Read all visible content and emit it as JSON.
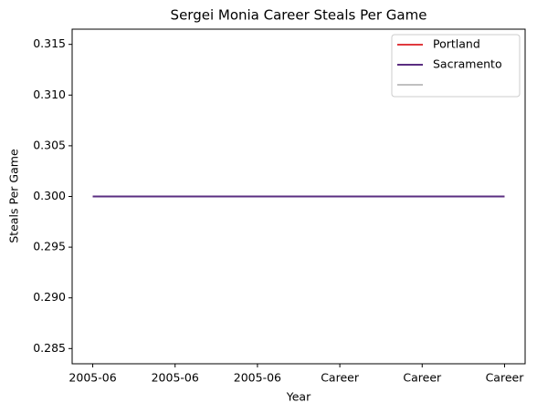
{
  "chart_data": {
    "type": "line",
    "title": "Sergei Monia Career Steals Per Game",
    "x_label": "Year",
    "y_label": "Steals Per Game",
    "categories": [
      "2005-06",
      "2005-06",
      "2005-06",
      "Career",
      "Career",
      "Career"
    ],
    "series": [
      {
        "name": "Portland",
        "color": "#e03a3e",
        "values": [
          0.3,
          0.3,
          0.3,
          0.3,
          0.3,
          0.3
        ]
      },
      {
        "name": "Sacramento",
        "color": "#5a2d81",
        "values": [
          0.3,
          0.3,
          0.3,
          0.3,
          0.3,
          0.3
        ]
      },
      {
        "color": "#c0c0c0",
        "values": [
          null,
          null,
          null,
          null,
          null,
          null
        ]
      }
    ],
    "ylim": [
      0.2835,
      0.3165
    ],
    "yticks": [
      0.285,
      {
        "value": 0.29,
        "label": "0.290"
      },
      0.295,
      {
        "value": 0.3,
        "label": "0.300"
      },
      0.305,
      {
        "value": 0.31,
        "label": "0.310"
      },
      0.315
    ],
    "legend": "upper right"
  }
}
